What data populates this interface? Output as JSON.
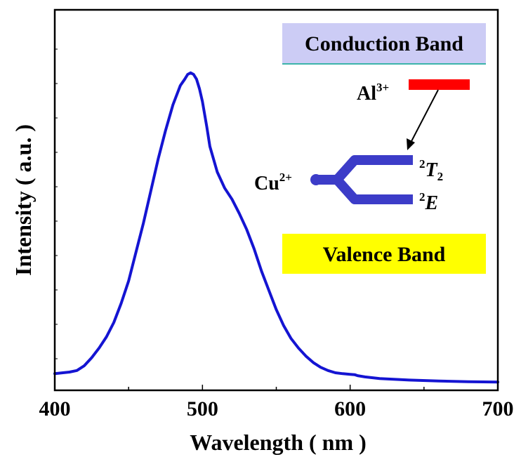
{
  "chart_data": {
    "type": "line",
    "title": "",
    "xlabel": "Wavelength ( nm )",
    "ylabel": "Intensity ( a.u. )",
    "xlim": [
      400,
      700
    ],
    "ylim": [
      0,
      1
    ],
    "x_ticks": [
      "400",
      "500",
      "600",
      "700"
    ],
    "y_ticks_labeled": false,
    "grid": false,
    "legend": "none",
    "series": [
      {
        "color": "#1414d2",
        "x": [
          400,
          410,
          415,
          420,
          425,
          430,
          435,
          440,
          445,
          450,
          455,
          460,
          465,
          470,
          475,
          480,
          485,
          488,
          490,
          492,
          494,
          496,
          498,
          500,
          503,
          505,
          510,
          515,
          520,
          525,
          530,
          535,
          540,
          545,
          550,
          555,
          560,
          565,
          570,
          575,
          580,
          585,
          590,
          595,
          600,
          603,
          605,
          610,
          620,
          640,
          660,
          680,
          700
        ],
        "y": [
          0.03,
          0.035,
          0.04,
          0.055,
          0.08,
          0.11,
          0.145,
          0.19,
          0.25,
          0.32,
          0.41,
          0.5,
          0.6,
          0.7,
          0.79,
          0.87,
          0.93,
          0.95,
          0.965,
          0.97,
          0.965,
          0.95,
          0.92,
          0.88,
          0.8,
          0.74,
          0.66,
          0.61,
          0.575,
          0.53,
          0.48,
          0.42,
          0.35,
          0.29,
          0.23,
          0.18,
          0.14,
          0.11,
          0.085,
          0.065,
          0.05,
          0.04,
          0.033,
          0.03,
          0.028,
          0.027,
          0.024,
          0.02,
          0.015,
          0.01,
          0.007,
          0.005,
          0.004
        ]
      }
    ],
    "inset": {
      "conduction_band_label": "Conduction Band",
      "valence_band_label": "Valence Band",
      "al_ion": "Al",
      "al_charge": "3+",
      "cu_ion": "Cu",
      "cu_charge": "2+",
      "t2_prefix": "2",
      "t2_symbol": "T",
      "t2_sub": "2",
      "e_prefix": "2",
      "e_symbol": "E",
      "colors": {
        "conduction_band_fill": "#ccccf5",
        "valence_band_fill": "#ffff00",
        "al_level": "#ff0000",
        "cu_levels": "#3c3cc8"
      }
    }
  }
}
